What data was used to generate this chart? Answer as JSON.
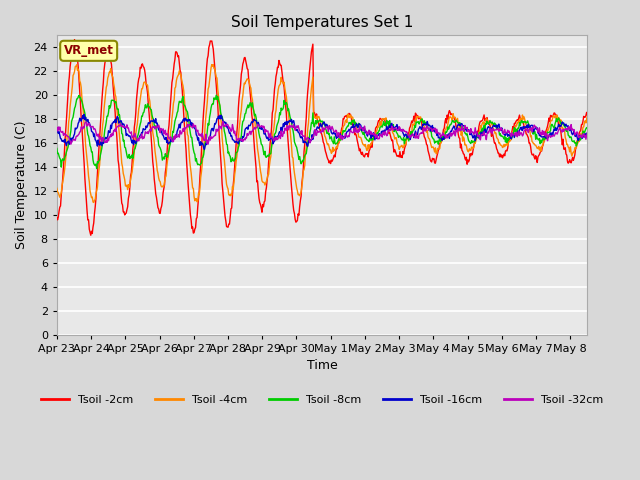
{
  "title": "Soil Temperatures Set 1",
  "xlabel": "Time",
  "ylabel": "Soil Temperature (C)",
  "ylim": [
    0,
    25
  ],
  "yticks": [
    0,
    2,
    4,
    6,
    8,
    10,
    12,
    14,
    16,
    18,
    20,
    22,
    24
  ],
  "date_labels": [
    "Apr 23",
    "Apr 24",
    "Apr 25",
    "Apr 26",
    "Apr 27",
    "Apr 28",
    "Apr 29",
    "Apr 30",
    "May 1",
    "May 2",
    "May 3",
    "May 4",
    "May 5",
    "May 6",
    "May 7",
    "May 8"
  ],
  "colors": {
    "Tsoil -2cm": "#ff0000",
    "Tsoil -4cm": "#ff8800",
    "Tsoil -8cm": "#00cc00",
    "Tsoil -16cm": "#0000cc",
    "Tsoil -32cm": "#bb00bb"
  },
  "annotation_text": "VR_met",
  "fig_bg": "#d8d8d8",
  "plot_bg": "#e8e8e8",
  "grid_color": "#ffffff",
  "n_points": 720,
  "end_day": 15.5,
  "base_temp": 16.5
}
